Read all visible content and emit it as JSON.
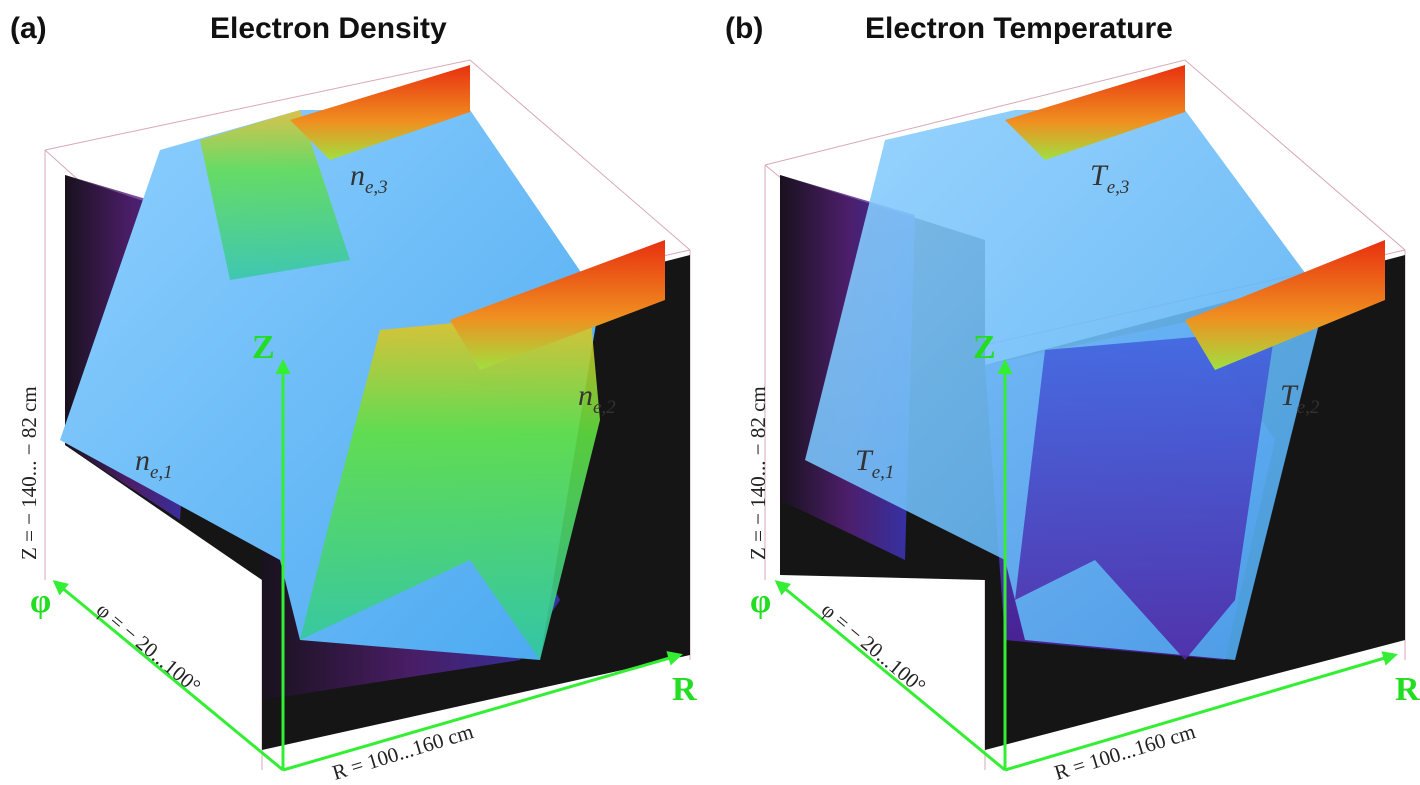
{
  "panels": [
    {
      "letter": "(a)",
      "title": "Electron Density",
      "axes": {
        "z": "Z",
        "r": "R",
        "phi": "φ"
      },
      "ranges": {
        "z": "Z = − 140... − 82 cm",
        "phi": "φ = − 20...100°",
        "r": "R = 100...160 cm"
      },
      "surfaces": [
        {
          "base": "n",
          "sub": "e,1"
        },
        {
          "base": "n",
          "sub": "e,2"
        },
        {
          "base": "n",
          "sub": "e,3"
        }
      ]
    },
    {
      "letter": "(b)",
      "title": "Electron Temperature",
      "axes": {
        "z": "Z",
        "r": "R",
        "phi": "φ"
      },
      "ranges": {
        "z": "Z = − 140... − 82 cm",
        "phi": "φ = − 20...100°",
        "r": "R = 100...160 cm"
      },
      "surfaces": [
        {
          "base": "T",
          "sub": "e,1"
        },
        {
          "base": "T",
          "sub": "e,2"
        },
        {
          "base": "T",
          "sub": "e,3"
        }
      ]
    }
  ]
}
